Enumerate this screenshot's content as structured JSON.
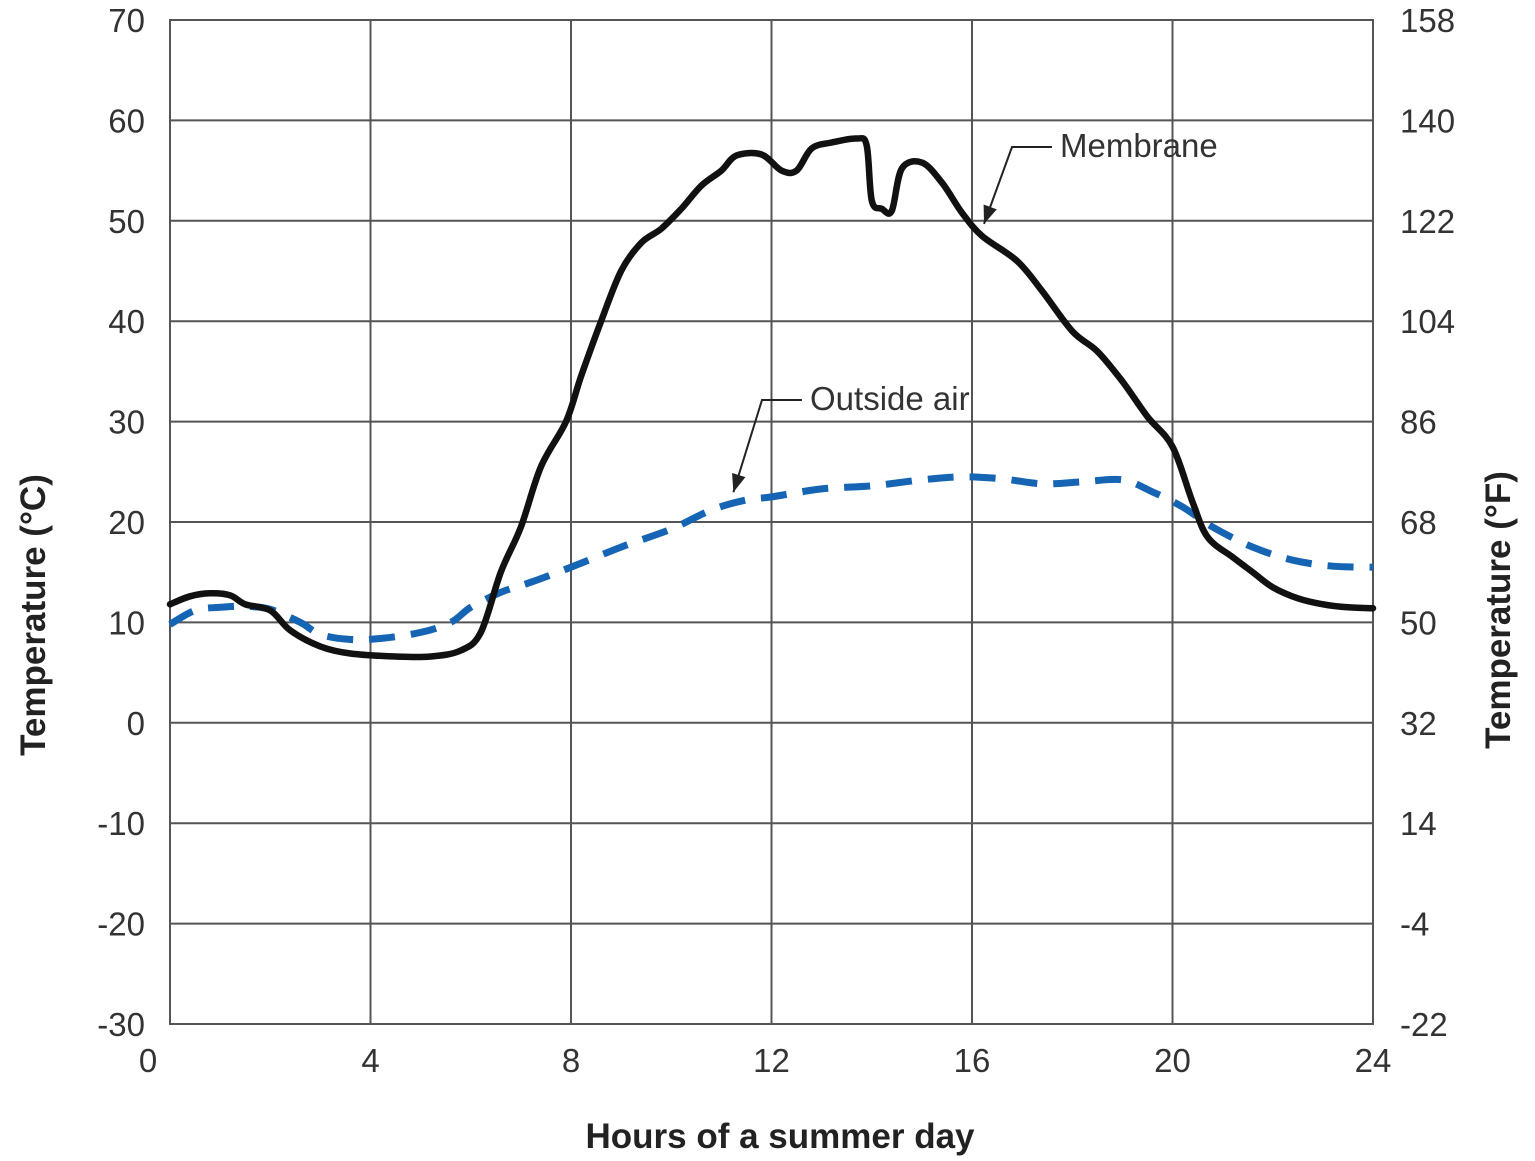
{
  "chart_data": {
    "type": "line",
    "xlabel": "Hours of a summer day",
    "ylabel": "Temperature (°C)",
    "ylabel_right": "Temperature (°F)",
    "xlim": [
      0,
      24
    ],
    "ylim": [
      -30,
      70
    ],
    "x_ticks": [
      "0",
      "4",
      "8",
      "12",
      "16",
      "20",
      "24"
    ],
    "y_ticks_left": [
      "70",
      "60",
      "50",
      "40",
      "30",
      "20",
      "10",
      "0",
      "-10",
      "-20",
      "-30"
    ],
    "y_ticks_right": [
      "158",
      "140",
      "122",
      "104",
      "86",
      "68",
      "50",
      "32",
      "14",
      "-4",
      "-22"
    ],
    "grid": true,
    "series": [
      {
        "name": "Membrane",
        "style": "solid",
        "color": "#111111",
        "points": [
          [
            0,
            11.8
          ],
          [
            0.4,
            12.6
          ],
          [
            0.8,
            12.9
          ],
          [
            1.2,
            12.7
          ],
          [
            1.5,
            11.8
          ],
          [
            2.0,
            11.2
          ],
          [
            2.4,
            9.2
          ],
          [
            3.0,
            7.6
          ],
          [
            3.6,
            6.9
          ],
          [
            4.5,
            6.6
          ],
          [
            5.2,
            6.6
          ],
          [
            5.8,
            7.2
          ],
          [
            6.2,
            9.0
          ],
          [
            6.6,
            15.0
          ],
          [
            7.0,
            19.5
          ],
          [
            7.4,
            25.5
          ],
          [
            7.9,
            30.0
          ],
          [
            8.2,
            34.5
          ],
          [
            8.6,
            40.0
          ],
          [
            9.0,
            45.0
          ],
          [
            9.4,
            47.8
          ],
          [
            9.8,
            49.2
          ],
          [
            10.2,
            51.2
          ],
          [
            10.6,
            53.5
          ],
          [
            11.0,
            55.0
          ],
          [
            11.3,
            56.5
          ],
          [
            11.8,
            56.6
          ],
          [
            12.2,
            55.0
          ],
          [
            12.5,
            55.0
          ],
          [
            12.8,
            57.2
          ],
          [
            13.2,
            57.8
          ],
          [
            13.7,
            58.2
          ],
          [
            13.9,
            57.5
          ],
          [
            14.0,
            52.0
          ],
          [
            14.2,
            51.2
          ],
          [
            14.4,
            51.0
          ],
          [
            14.6,
            55.2
          ],
          [
            15.0,
            55.8
          ],
          [
            15.4,
            53.8
          ],
          [
            15.8,
            50.8
          ],
          [
            16.2,
            48.5
          ],
          [
            16.9,
            46.0
          ],
          [
            17.4,
            43.0
          ],
          [
            18.0,
            39.0
          ],
          [
            18.5,
            37.0
          ],
          [
            19.0,
            34.0
          ],
          [
            19.5,
            30.5
          ],
          [
            20.0,
            27.5
          ],
          [
            20.4,
            22.0
          ],
          [
            20.7,
            18.5
          ],
          [
            21.2,
            16.5
          ],
          [
            21.6,
            15.0
          ],
          [
            22.0,
            13.5
          ],
          [
            22.5,
            12.4
          ],
          [
            23.0,
            11.8
          ],
          [
            23.5,
            11.5
          ],
          [
            24.0,
            11.4
          ]
        ]
      },
      {
        "name": "Outside air",
        "style": "dashed",
        "color": "#1565b4",
        "points": [
          [
            0,
            9.8
          ],
          [
            0.5,
            11.2
          ],
          [
            1.0,
            11.5
          ],
          [
            1.5,
            11.6
          ],
          [
            2.0,
            11.3
          ],
          [
            2.6,
            10.0
          ],
          [
            3.0,
            8.8
          ],
          [
            3.6,
            8.3
          ],
          [
            4.2,
            8.4
          ],
          [
            5.0,
            9.0
          ],
          [
            5.6,
            10.0
          ],
          [
            6.0,
            11.5
          ],
          [
            6.6,
            13.0
          ],
          [
            7.2,
            14.0
          ],
          [
            8.0,
            15.5
          ],
          [
            9.0,
            17.5
          ],
          [
            10.0,
            19.3
          ],
          [
            10.8,
            21.2
          ],
          [
            11.5,
            22.2
          ],
          [
            12.0,
            22.5
          ],
          [
            13.0,
            23.3
          ],
          [
            14.0,
            23.6
          ],
          [
            15.0,
            24.2
          ],
          [
            15.8,
            24.5
          ],
          [
            16.6,
            24.3
          ],
          [
            17.4,
            23.8
          ],
          [
            18.2,
            24.0
          ],
          [
            19.0,
            24.2
          ],
          [
            19.6,
            23.0
          ],
          [
            20.2,
            21.5
          ],
          [
            20.8,
            19.5
          ],
          [
            21.6,
            17.5
          ],
          [
            22.4,
            16.2
          ],
          [
            23.2,
            15.6
          ],
          [
            24.0,
            15.5
          ]
        ]
      }
    ],
    "annotations": [
      {
        "text": "Membrane",
        "series": "Membrane",
        "at_x": 16.2
      },
      {
        "text": "Outside air",
        "series": "Outside air",
        "at_x": 11.2
      }
    ]
  }
}
